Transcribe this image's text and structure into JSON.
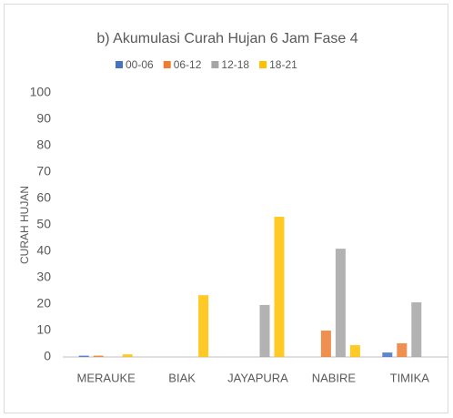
{
  "chart_data": {
    "type": "bar",
    "title": "b) Akumulasi Curah Hujan 6 Jam Fase 4",
    "y_label": "CURAH HUJAN",
    "categories": [
      "MERAUKE",
      "BIAK",
      "JAYAPURA",
      "NABIRE",
      "TIMIKA"
    ],
    "series": [
      {
        "name": "00-06",
        "color": "#4472c4",
        "values": [
          0.5,
          0,
          0,
          0,
          1.7
        ]
      },
      {
        "name": "06-12",
        "color": "#ed7d31",
        "values": [
          0.5,
          0,
          0,
          10,
          5.2
        ]
      },
      {
        "name": "12-18",
        "color": "#a5a5a5",
        "values": [
          0,
          0,
          19.7,
          41,
          20.7
        ]
      },
      {
        "name": "18-21",
        "color": "#ffc000",
        "values": [
          1,
          23.4,
          53.1,
          4.5,
          0
        ]
      }
    ],
    "ylim": [
      0,
      100
    ],
    "yticks": [
      0,
      10,
      20,
      30,
      40,
      50,
      60,
      70,
      80,
      90,
      100
    ],
    "grid": false,
    "legend": "top"
  }
}
